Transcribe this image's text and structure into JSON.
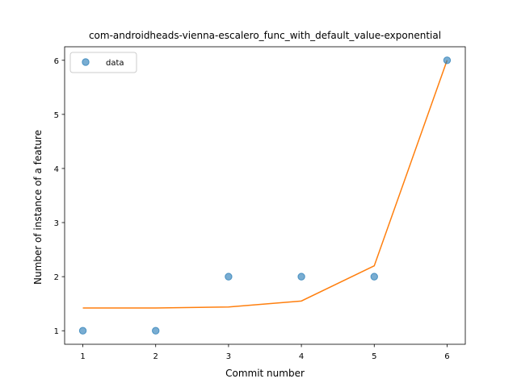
{
  "chart_data": {
    "type": "scatter",
    "title": "com-androidheads-vienna-escalero_func_with_default_value-exponential",
    "xlabel": "Commit number",
    "ylabel": "Number of instance of a feature",
    "xlim": [
      0.75,
      6.25
    ],
    "ylim": [
      0.75,
      6.25
    ],
    "xticks": [
      "1",
      "2",
      "3",
      "4",
      "5",
      "6"
    ],
    "yticks": [
      "1",
      "2",
      "3",
      "4",
      "5",
      "6"
    ],
    "grid": false,
    "legend": {
      "placement": "upper left",
      "entries": [
        "data"
      ]
    },
    "series": [
      {
        "name": "data",
        "kind": "scatter",
        "color": "#1f77b4",
        "x": [
          1,
          2,
          3,
          4,
          5,
          6
        ],
        "y": [
          1,
          1,
          2,
          2,
          2,
          6
        ]
      },
      {
        "kind": "line",
        "color": "#ff7f0e",
        "x": [
          1,
          2,
          3,
          4,
          5,
          6
        ],
        "y": [
          1.42,
          1.42,
          1.44,
          1.55,
          2.2,
          6.0
        ]
      }
    ]
  }
}
